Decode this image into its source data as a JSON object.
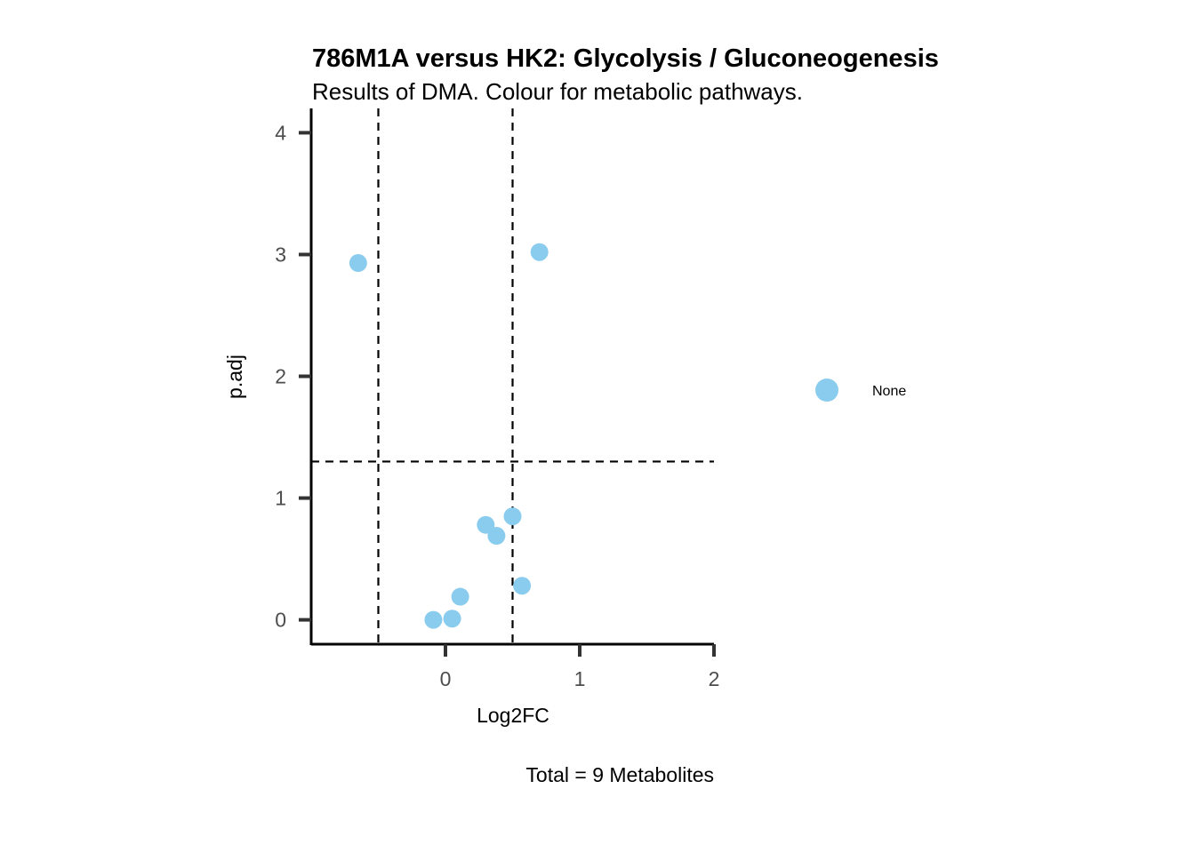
{
  "chart_data": {
    "type": "scatter",
    "title": "786M1A versus HK2: Glycolysis / Gluconeogenesis",
    "subtitle": "Results of DMA. Colour for metabolic pathways.",
    "xlabel": "Log2FC",
    "ylabel": "p.adj",
    "caption": "Total = 9 Metabolites",
    "xlim": [
      -1,
      2
    ],
    "ylim": [
      -0.2,
      4.2
    ],
    "x_ticks": [
      0,
      1,
      2
    ],
    "y_ticks": [
      0,
      1,
      2,
      3,
      4
    ],
    "x_tick_labels": [
      "0",
      "1",
      "2"
    ],
    "y_tick_labels": [
      "0",
      "1",
      "2",
      "3",
      "4"
    ],
    "grid": false,
    "vlines": [
      -0.5,
      0.5
    ],
    "hlines": [
      1.3
    ],
    "series": [
      {
        "name": "None",
        "color": "#8ACCEE",
        "points": [
          {
            "x": -0.65,
            "y": 2.93
          },
          {
            "x": 0.7,
            "y": 3.02
          },
          {
            "x": 0.5,
            "y": 0.85
          },
          {
            "x": 0.3,
            "y": 0.78
          },
          {
            "x": 0.38,
            "y": 0.69
          },
          {
            "x": 0.57,
            "y": 0.28
          },
          {
            "x": 0.11,
            "y": 0.19
          },
          {
            "x": -0.09,
            "y": 0.0
          },
          {
            "x": 0.05,
            "y": 0.01
          }
        ]
      }
    ],
    "legend": {
      "position": "right",
      "entries": [
        {
          "label": "None",
          "color": "#8ACCEE"
        }
      ]
    }
  }
}
